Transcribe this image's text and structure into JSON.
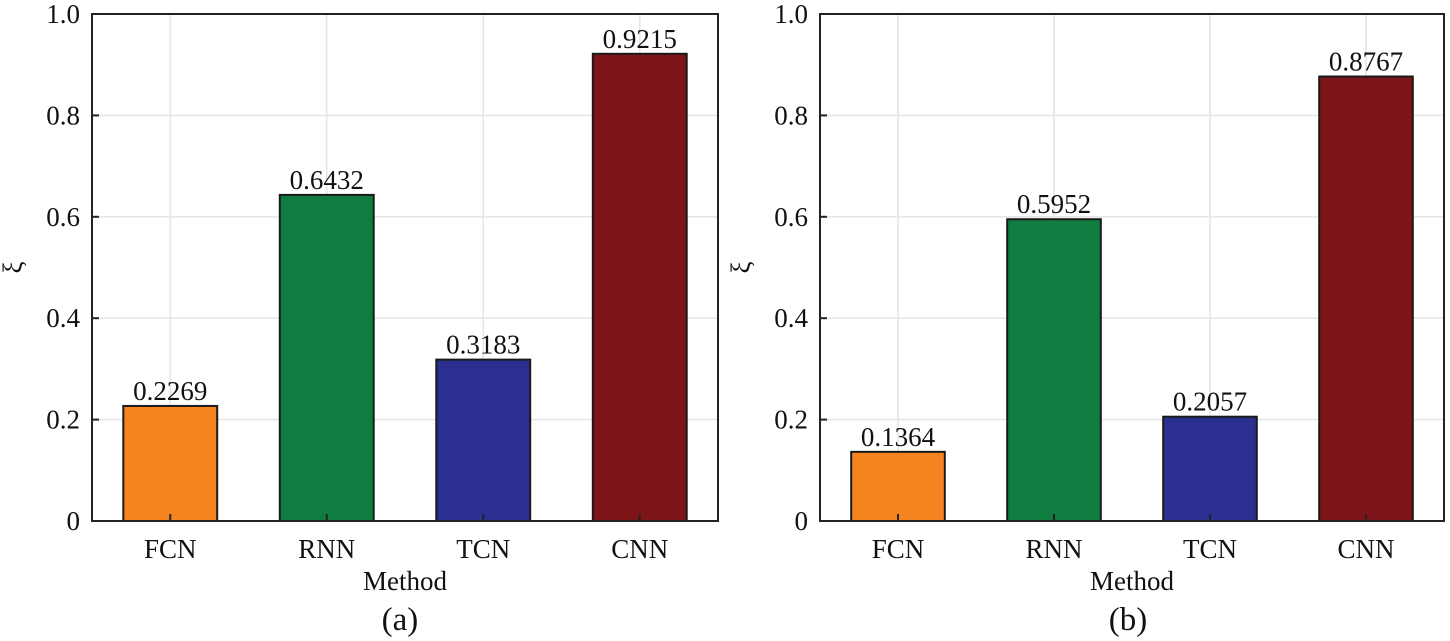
{
  "chart_data": [
    {
      "type": "bar",
      "panel_label": "(a)",
      "categories": [
        "FCN",
        "RNN",
        "TCN",
        "CNN"
      ],
      "values": [
        0.2269,
        0.6432,
        0.3183,
        0.9215
      ],
      "value_labels": [
        "0.2269",
        "0.6432",
        "0.3183",
        "0.9215"
      ],
      "colors": [
        "#f5831f",
        "#0f7d40",
        "#2b3090",
        "#7d1518"
      ],
      "xlabel": "Method",
      "ylabel": "ξ",
      "ylim": [
        0,
        1.0
      ],
      "yticks": [
        0,
        0.2,
        0.4,
        0.6,
        0.8,
        1.0
      ],
      "ytick_labels": [
        "0",
        "0.2",
        "0.4",
        "0.6",
        "0.8",
        "1.0"
      ],
      "grid": true
    },
    {
      "type": "bar",
      "panel_label": "(b)",
      "categories": [
        "FCN",
        "RNN",
        "TCN",
        "CNN"
      ],
      "values": [
        0.1364,
        0.5952,
        0.2057,
        0.8767
      ],
      "value_labels": [
        "0.1364",
        "0.5952",
        "0.2057",
        "0.8767"
      ],
      "colors": [
        "#f5831f",
        "#0f7d40",
        "#2b3090",
        "#7d1518"
      ],
      "xlabel": "Method",
      "ylabel": "ξ",
      "ylim": [
        0,
        1.0
      ],
      "yticks": [
        0,
        0.2,
        0.4,
        0.6,
        0.8,
        1.0
      ],
      "ytick_labels": [
        "0",
        "0.2",
        "0.4",
        "0.6",
        "0.8",
        "1.0"
      ],
      "grid": true
    }
  ]
}
